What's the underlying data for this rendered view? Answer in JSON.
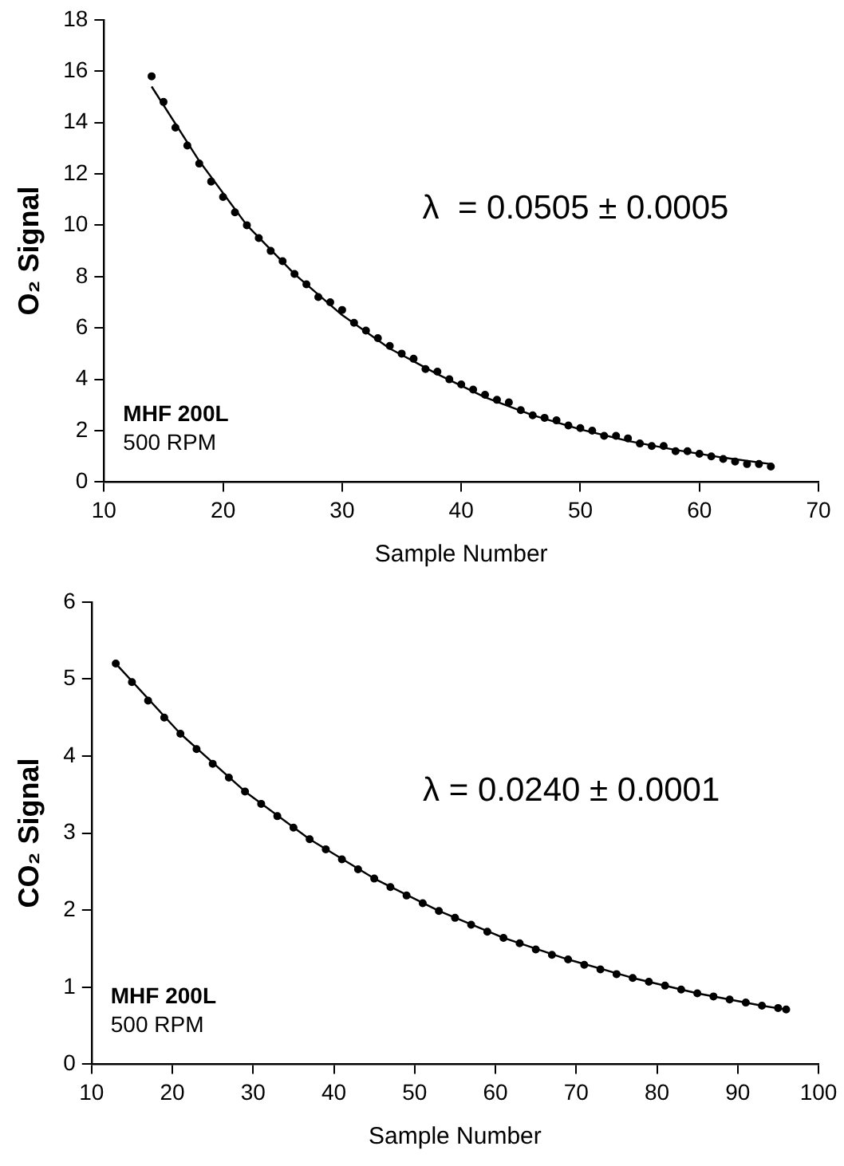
{
  "chart_data": [
    {
      "type": "scatter",
      "xlabel": "Sample Number",
      "ylabel": "O₂ Signal",
      "xlim": [
        10,
        70
      ],
      "xticks": [
        10,
        20,
        30,
        40,
        50,
        60,
        70
      ],
      "ylim": [
        0,
        18
      ],
      "yticks": [
        0,
        2,
        4,
        6,
        8,
        10,
        12,
        14,
        16,
        18
      ],
      "grid": false,
      "legend": false,
      "marker": "circle",
      "annotations": [
        "λ  = 0.0505 ± 0.0005",
        "MHF 200L",
        "500 RPM"
      ],
      "series": [
        {
          "color": "#000000",
          "x": [
            14,
            15,
            16,
            17,
            18,
            19,
            20,
            21,
            22,
            23,
            24,
            25,
            26,
            27,
            28,
            29,
            30,
            31,
            32,
            33,
            34,
            35,
            36,
            37,
            38,
            39,
            40,
            41,
            42,
            43,
            44,
            45,
            46,
            47,
            48,
            49,
            50,
            51,
            52,
            53,
            54,
            55,
            56,
            57,
            58,
            59,
            60,
            61,
            62,
            63,
            64,
            65,
            66
          ],
          "values": [
            15.8,
            14.8,
            13.8,
            13.1,
            12.4,
            11.7,
            11.1,
            10.5,
            10.0,
            9.5,
            9.0,
            8.6,
            8.1,
            7.7,
            7.2,
            7.0,
            6.7,
            6.2,
            5.9,
            5.6,
            5.3,
            5.0,
            4.8,
            4.4,
            4.3,
            4.0,
            3.8,
            3.6,
            3.4,
            3.2,
            3.1,
            2.8,
            2.6,
            2.5,
            2.4,
            2.2,
            2.1,
            2.0,
            1.8,
            1.8,
            1.7,
            1.5,
            1.4,
            1.4,
            1.2,
            1.2,
            1.1,
            1.0,
            0.9,
            0.8,
            0.7,
            0.7,
            0.6
          ]
        },
        {
          "type": "line",
          "color": "#000000",
          "line_style": "solid",
          "marker": "none",
          "x": [
            14,
            18,
            22,
            26,
            30,
            34,
            38,
            42,
            46,
            50,
            54,
            58,
            62,
            66
          ],
          "values": [
            15.4,
            12.5,
            10.0,
            8.1,
            6.5,
            5.2,
            4.2,
            3.3,
            2.6,
            2.05,
            1.6,
            1.25,
            0.95,
            0.7
          ]
        }
      ]
    },
    {
      "type": "scatter",
      "xlabel": "Sample Number",
      "ylabel": "CO₂ Signal",
      "xlim": [
        10,
        100
      ],
      "xticks": [
        10,
        20,
        30,
        40,
        50,
        60,
        70,
        80,
        90,
        100
      ],
      "ylim": [
        0,
        6
      ],
      "yticks": [
        0,
        1,
        2,
        3,
        4,
        5,
        6
      ],
      "grid": false,
      "legend": false,
      "marker": "circle",
      "annotations": [
        "λ = 0.0240 ± 0.0001",
        "MHF 200L",
        "500 RPM"
      ],
      "series": [
        {
          "color": "#000000",
          "x": [
            13,
            15,
            17,
            19,
            21,
            23,
            25,
            27,
            29,
            31,
            33,
            35,
            37,
            39,
            41,
            43,
            45,
            47,
            49,
            51,
            53,
            55,
            57,
            59,
            61,
            63,
            65,
            67,
            69,
            71,
            73,
            75,
            77,
            79,
            81,
            83,
            85,
            87,
            89,
            91,
            93,
            95,
            96
          ],
          "values": [
            5.2,
            4.96,
            4.72,
            4.5,
            4.29,
            4.09,
            3.9,
            3.72,
            3.54,
            3.38,
            3.22,
            3.07,
            2.92,
            2.79,
            2.66,
            2.53,
            2.41,
            2.3,
            2.19,
            2.09,
            1.99,
            1.9,
            1.81,
            1.72,
            1.64,
            1.57,
            1.49,
            1.42,
            1.36,
            1.29,
            1.23,
            1.17,
            1.12,
            1.07,
            1.02,
            0.97,
            0.92,
            0.88,
            0.84,
            0.8,
            0.76,
            0.73,
            0.71
          ]
        },
        {
          "type": "line",
          "color": "#000000",
          "line_style": "solid",
          "marker": "none",
          "x": [
            13,
            21,
            29,
            37,
            45,
            53,
            61,
            69,
            77,
            85,
            93,
            96
          ],
          "values": [
            5.2,
            4.29,
            3.54,
            2.92,
            2.41,
            1.99,
            1.64,
            1.36,
            1.12,
            0.92,
            0.76,
            0.71
          ]
        }
      ]
    }
  ]
}
